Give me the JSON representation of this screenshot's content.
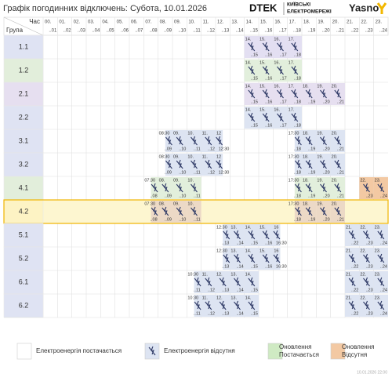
{
  "header": {
    "title": "Графік погодинних відключень:",
    "date": "Субота, 10.01.2026",
    "brand": "DTEK",
    "company_line1": "КИЇВСЬКІ",
    "company_line2": "ЕЛЕКТРОМЕРЕЖІ",
    "partner": "Yasno"
  },
  "table": {
    "time_label": "Час",
    "group_label": "Група",
    "columns": [
      {
        "top": "00.",
        "bottom": "..01"
      },
      {
        "top": "01.",
        "bottom": "..02"
      },
      {
        "top": "02.",
        "bottom": "..03"
      },
      {
        "top": "03.",
        "bottom": "..04"
      },
      {
        "top": "04.",
        "bottom": "..05"
      },
      {
        "top": "05.",
        "bottom": "..06"
      },
      {
        "top": "06.",
        "bottom": "..07"
      },
      {
        "top": "07.",
        "bottom": "..08"
      },
      {
        "top": "08.",
        "bottom": "..09"
      },
      {
        "top": "09.",
        "bottom": "..10"
      },
      {
        "top": "10.",
        "bottom": "..11"
      },
      {
        "top": "11.",
        "bottom": "..12"
      },
      {
        "top": "12.",
        "bottom": "..13"
      },
      {
        "top": "13.",
        "bottom": "..14"
      },
      {
        "top": "14.",
        "bottom": "..15"
      },
      {
        "top": "15.",
        "bottom": "..16"
      },
      {
        "top": "16.",
        "bottom": "..17"
      },
      {
        "top": "17.",
        "bottom": "..18"
      },
      {
        "top": "18.",
        "bottom": "..19"
      },
      {
        "top": "19.",
        "bottom": "..20"
      },
      {
        "top": "20.",
        "bottom": "..21"
      },
      {
        "top": "21.",
        "bottom": "..22"
      },
      {
        "top": "22.",
        "bottom": "..23"
      },
      {
        "top": "23.",
        "bottom": "..24"
      }
    ],
    "rows": [
      {
        "group": "1.1",
        "label_color": "#dfe3f3",
        "off_color": "#e3dff2",
        "cells": [
          null,
          null,
          null,
          null,
          null,
          null,
          null,
          null,
          null,
          null,
          null,
          null,
          null,
          null,
          {
            "top": "14.",
            "bottom": "..15"
          },
          {
            "top": "15.",
            "bottom": "..16"
          },
          {
            "top": "16.",
            "bottom": "..17"
          },
          {
            "top": "17.",
            "bottom": "..18"
          },
          null,
          null,
          null,
          null,
          null,
          null
        ]
      },
      {
        "group": "1.2",
        "label_color": "#e2eedb",
        "off_color": "#e2efdc",
        "cells": [
          null,
          null,
          null,
          null,
          null,
          null,
          null,
          null,
          null,
          null,
          null,
          null,
          null,
          null,
          {
            "top": "14.",
            "bottom": "..15"
          },
          {
            "top": "15.",
            "bottom": "..16"
          },
          {
            "top": "16.",
            "bottom": "..17"
          },
          {
            "top": "17.",
            "bottom": "..18"
          },
          null,
          null,
          null,
          null,
          null,
          null
        ]
      },
      {
        "group": "2.1",
        "label_color": "#e6dff0",
        "off_color": "#e6dff0",
        "cells": [
          null,
          null,
          null,
          null,
          null,
          null,
          null,
          null,
          null,
          null,
          null,
          null,
          null,
          null,
          {
            "top": "14.",
            "bottom": "..15"
          },
          {
            "top": "15.",
            "bottom": "..16"
          },
          {
            "top": "16.",
            "bottom": "..17"
          },
          {
            "top": "17.",
            "bottom": "..18"
          },
          {
            "top": "18.",
            "bottom": "..19"
          },
          {
            "top": "19.",
            "bottom": "..20"
          },
          {
            "top": "20.",
            "bottom": "..21"
          },
          null,
          null,
          null
        ]
      },
      {
        "group": "2.2",
        "label_color": "#dfe3f3",
        "off_color": "#dde4f2",
        "cells": [
          null,
          null,
          null,
          null,
          null,
          null,
          null,
          null,
          null,
          null,
          null,
          null,
          null,
          null,
          {
            "top": "14.",
            "bottom": "..15"
          },
          {
            "top": "15.",
            "bottom": "..16"
          },
          {
            "top": "16.",
            "bottom": "..17"
          },
          {
            "top": "17.",
            "bottom": "..18"
          },
          null,
          null,
          null,
          null,
          null,
          null
        ]
      },
      {
        "group": "3.1",
        "label_color": "#dfe3f3",
        "off_color": "#dde4f2",
        "cells": [
          null,
          null,
          null,
          null,
          null,
          null,
          null,
          null,
          {
            "top": "08:30",
            "bottom": "..09",
            "half": "second"
          },
          {
            "top": "09.",
            "bottom": "..10"
          },
          {
            "top": "10.",
            "bottom": "..11"
          },
          {
            "top": "11.",
            "bottom": "..12"
          },
          {
            "top": "12",
            "bottom": "12:30",
            "half": "first"
          },
          null,
          null,
          null,
          null,
          {
            "top": "17:30",
            "bottom": "..18",
            "half": "second"
          },
          {
            "top": "18.",
            "bottom": "..19"
          },
          {
            "top": "19.",
            "bottom": "..20"
          },
          {
            "top": "20.",
            "bottom": "..21"
          },
          null,
          null,
          null
        ]
      },
      {
        "group": "3.2",
        "label_color": "#dfe3f3",
        "off_color": "#dde4f2",
        "cells": [
          null,
          null,
          null,
          null,
          null,
          null,
          null,
          null,
          {
            "top": "08:30",
            "bottom": "..09",
            "half": "second"
          },
          {
            "top": "09.",
            "bottom": "..10"
          },
          {
            "top": "10.",
            "bottom": "..11"
          },
          {
            "top": "11.",
            "bottom": "..12"
          },
          {
            "top": "12",
            "bottom": "12:30",
            "half": "first"
          },
          null,
          null,
          null,
          null,
          {
            "top": "17:30",
            "bottom": "..18",
            "half": "second"
          },
          {
            "top": "18.",
            "bottom": "..19"
          },
          {
            "top": "19.",
            "bottom": "..20"
          },
          {
            "top": "20.",
            "bottom": "..21"
          },
          null,
          null,
          null
        ]
      },
      {
        "group": "4.1",
        "label_color": "#e2eedb",
        "off_color": "#e2efdc",
        "cells": [
          null,
          null,
          null,
          null,
          null,
          null,
          null,
          {
            "top": "07:30",
            "bottom": "..08",
            "half": "second"
          },
          {
            "top": "08.",
            "bottom": "..09"
          },
          {
            "top": "09.",
            "bottom": "..10"
          },
          {
            "top": "10.",
            "bottom": "..11"
          },
          null,
          null,
          null,
          null,
          null,
          null,
          {
            "top": "17:30",
            "bottom": "..18",
            "half": "second"
          },
          {
            "top": "18.",
            "bottom": "..19"
          },
          {
            "top": "19.",
            "bottom": "..20"
          },
          {
            "top": "20.",
            "bottom": "..21"
          },
          null,
          {
            "top": "22.",
            "bottom": "..23",
            "color": "#f3c9a3"
          },
          {
            "top": "23.",
            "bottom": "..24",
            "color": "#f3c9a3"
          }
        ]
      },
      {
        "group": "4.2",
        "label_color": "#fdf3c4",
        "off_color": "#ecd9c6",
        "highlight": true,
        "cells": [
          null,
          null,
          null,
          null,
          null,
          null,
          null,
          {
            "top": "07:30",
            "bottom": "..08",
            "half": "second"
          },
          {
            "top": "08.",
            "bottom": "..09"
          },
          {
            "top": "09.",
            "bottom": "..10"
          },
          {
            "top": "10.",
            "bottom": "..11"
          },
          null,
          null,
          null,
          null,
          null,
          null,
          {
            "top": "17:30",
            "bottom": "..18",
            "half": "second"
          },
          {
            "top": "18.",
            "bottom": "..19"
          },
          {
            "top": "19.",
            "bottom": "..20"
          },
          {
            "top": "20.",
            "bottom": "..21"
          },
          null,
          null,
          null
        ]
      },
      {
        "group": "5.1",
        "label_color": "#dfe3f3",
        "off_color": "#dde4f2",
        "cells": [
          null,
          null,
          null,
          null,
          null,
          null,
          null,
          null,
          null,
          null,
          null,
          null,
          {
            "top": "12:30",
            "bottom": "..13",
            "half": "second"
          },
          {
            "top": "13.",
            "bottom": "..14"
          },
          {
            "top": "14.",
            "bottom": "..15"
          },
          {
            "top": "15.",
            "bottom": "..16"
          },
          {
            "top": "16",
            "bottom": "16:30",
            "half": "first"
          },
          null,
          null,
          null,
          null,
          {
            "top": "21.",
            "bottom": "..22"
          },
          {
            "top": "22.",
            "bottom": "..23"
          },
          {
            "top": "23.",
            "bottom": "..24"
          }
        ]
      },
      {
        "group": "5.2",
        "label_color": "#dfe3f3",
        "off_color": "#dde4f2",
        "cells": [
          null,
          null,
          null,
          null,
          null,
          null,
          null,
          null,
          null,
          null,
          null,
          null,
          {
            "top": "12:30",
            "bottom": "..13",
            "half": "second"
          },
          {
            "top": "13.",
            "bottom": "..14"
          },
          {
            "top": "14.",
            "bottom": "..15"
          },
          {
            "top": "15.",
            "bottom": "..16"
          },
          {
            "top": "16",
            "bottom": "16:30",
            "half": "first"
          },
          null,
          null,
          null,
          null,
          {
            "top": "21.",
            "bottom": "..22"
          },
          {
            "top": "22.",
            "bottom": "..23"
          },
          {
            "top": "23.",
            "bottom": "..24"
          }
        ]
      },
      {
        "group": "6.1",
        "label_color": "#dfe3f3",
        "off_color": "#dde4f2",
        "cells": [
          null,
          null,
          null,
          null,
          null,
          null,
          null,
          null,
          null,
          null,
          {
            "top": "10:30",
            "bottom": "..11",
            "half": "second"
          },
          {
            "top": "11.",
            "bottom": "..12"
          },
          {
            "top": "12.",
            "bottom": "..13"
          },
          {
            "top": "13.",
            "bottom": "..14"
          },
          {
            "top": "14.",
            "bottom": "..15"
          },
          null,
          null,
          null,
          null,
          null,
          null,
          {
            "top": "21.",
            "bottom": "..22"
          },
          {
            "top": "22.",
            "bottom": "..23"
          },
          {
            "top": "23.",
            "bottom": "..24"
          }
        ]
      },
      {
        "group": "6.2",
        "label_color": "#dfe3f3",
        "off_color": "#dde4f2",
        "cells": [
          null,
          null,
          null,
          null,
          null,
          null,
          null,
          null,
          null,
          null,
          {
            "top": "10:30",
            "bottom": "..11",
            "half": "second"
          },
          {
            "top": "11.",
            "bottom": "..12"
          },
          {
            "top": "12.",
            "bottom": "..13"
          },
          {
            "top": "13.",
            "bottom": "..14"
          },
          {
            "top": "14.",
            "bottom": "..15"
          },
          null,
          null,
          null,
          null,
          null,
          null,
          {
            "top": "21.",
            "bottom": "..22"
          },
          {
            "top": "22.",
            "bottom": "..23"
          },
          {
            "top": "23.",
            "bottom": "..24"
          }
        ]
      }
    ]
  },
  "legend": [
    {
      "label": "Електроенергія постачається",
      "kind": "on",
      "color": "#ffffff"
    },
    {
      "label": "Електроенергія відсутня",
      "kind": "off",
      "color": "#dde4f2"
    },
    {
      "label_line1": "Оновлення",
      "label_line2": "Постачається",
      "kind": "plain",
      "color": "#cfeac3"
    },
    {
      "label_line1": "Оновлення",
      "label_line2": "Відсутня",
      "kind": "plain",
      "color": "#f3c9a3"
    }
  ],
  "footer": "10.01.2026   22:00"
}
